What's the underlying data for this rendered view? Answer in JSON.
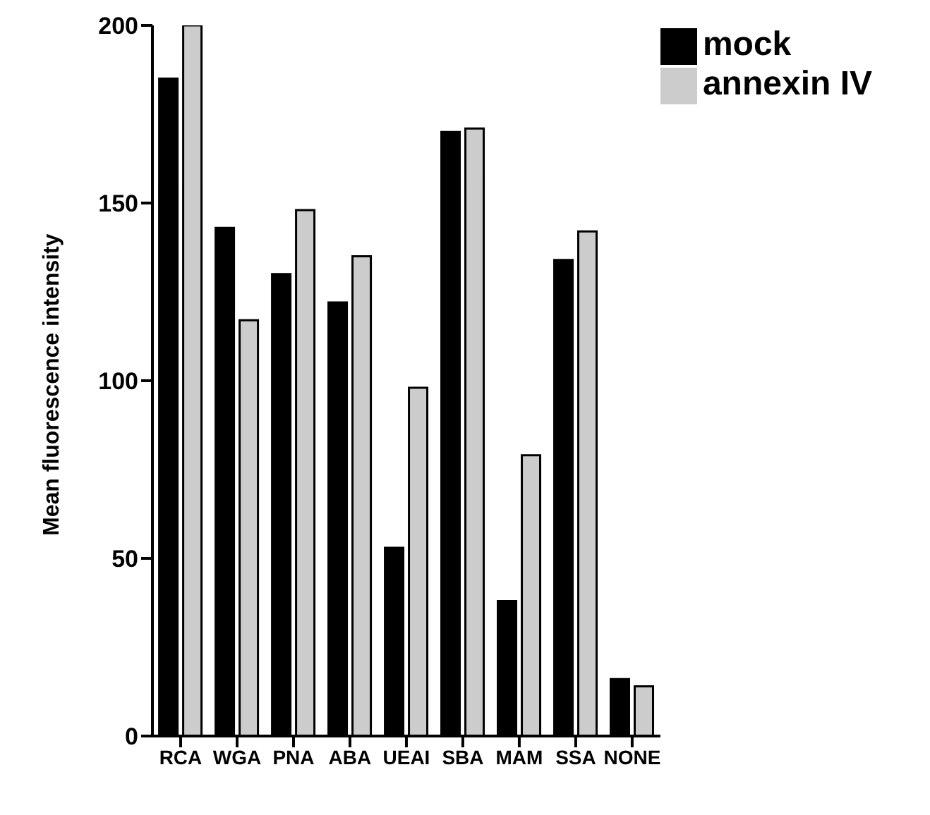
{
  "chart_data": {
    "type": "bar",
    "ylabel": "Mean fluorescence intensity",
    "categories": [
      "RCA",
      "WGA",
      "PNA",
      "ABA",
      "UEAI",
      "SBA",
      "MAM",
      "SSA",
      "NONE"
    ],
    "series": [
      {
        "name": "mock",
        "color": "#000000",
        "values": [
          185,
          143,
          130,
          122,
          53,
          170,
          38,
          134,
          16
        ]
      },
      {
        "name": "annexin IV",
        "color": "#cccccc",
        "values": [
          200,
          117,
          148,
          135,
          98,
          171,
          79,
          142,
          14
        ]
      }
    ],
    "ylim": [
      0,
      200
    ],
    "yticks": [
      0,
      50,
      100,
      150,
      200
    ],
    "grid": false,
    "legend": "top right"
  }
}
